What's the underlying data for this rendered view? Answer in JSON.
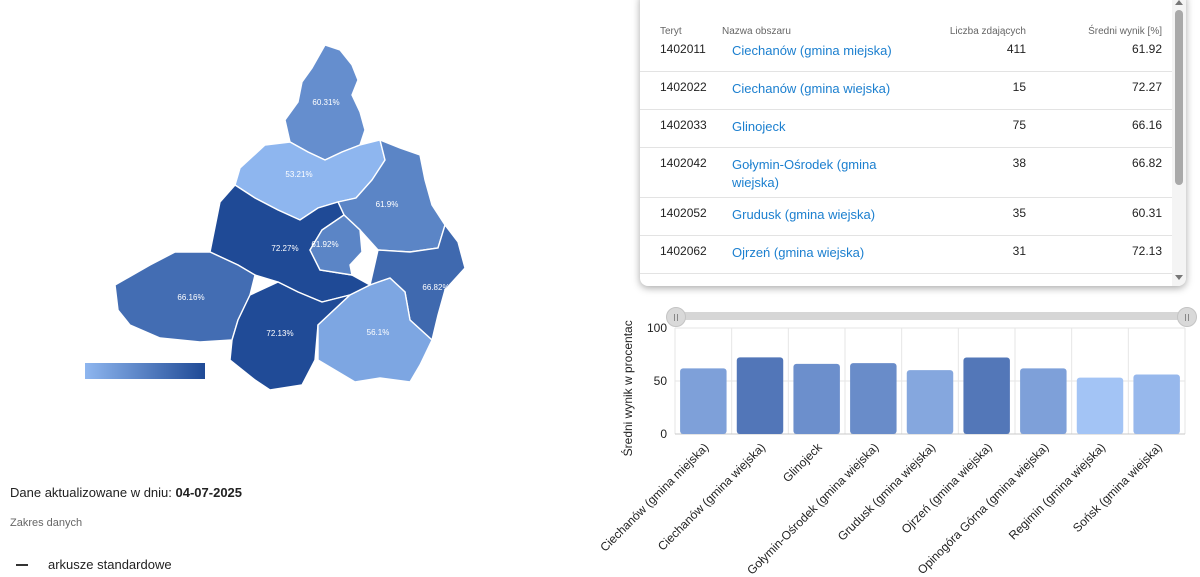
{
  "map": {
    "regions": [
      {
        "id": "north",
        "label": "60.31%",
        "value": 60.31
      },
      {
        "id": "northwest",
        "label": "53.21%",
        "value": 53.21
      },
      {
        "id": "east",
        "label": "61.9%",
        "value": 61.9
      },
      {
        "id": "center-west",
        "label": "72.27%",
        "value": 72.27
      },
      {
        "id": "city",
        "label": "61.92%",
        "value": 61.92
      },
      {
        "id": "west",
        "label": "66.16%",
        "value": 66.16
      },
      {
        "id": "southeast",
        "label": "66.82%",
        "value": 66.82
      },
      {
        "id": "south",
        "label": "72.13%",
        "value": 72.13
      },
      {
        "id": "south-east-2",
        "label": "56.1%",
        "value": 56.1
      }
    ],
    "legend": {
      "color_low": "#8eb6ef",
      "color_high": "#1f4a96"
    }
  },
  "info": {
    "update_prefix": "Dane aktualizowane w dniu:",
    "update_date": "04-07-2025",
    "scope_label": "Zakres danych",
    "scope_item": "arkusze standardowe"
  },
  "table": {
    "headers": {
      "teryt": "Teryt",
      "name": "Nazwa obszaru",
      "count": "Liczba zdających",
      "avg": "Średni wynik [%]"
    },
    "rows": [
      {
        "teryt": "1402011",
        "name": "Ciechanów (gmina miejska)",
        "count": "411",
        "avg": "61.92"
      },
      {
        "teryt": "1402022",
        "name": "Ciechanów (gmina wiejska)",
        "count": "15",
        "avg": "72.27"
      },
      {
        "teryt": "1402033",
        "name": "Glinojeck",
        "count": "75",
        "avg": "66.16"
      },
      {
        "teryt": "1402042",
        "name": "Gołymin-Ośrodek (gmina wiejska)",
        "count": "38",
        "avg": "66.82"
      },
      {
        "teryt": "1402052",
        "name": "Grudusk (gmina wiejska)",
        "count": "35",
        "avg": "60.31"
      },
      {
        "teryt": "1402062",
        "name": "Ojrzeń (gmina wiejska)",
        "count": "31",
        "avg": "72.13"
      }
    ]
  },
  "chart_data": {
    "type": "bar",
    "categories": [
      "Ciechanów (gmina miejska)",
      "Ciechanów (gmina wiejska)",
      "Glinojeck",
      "Gołymin-Ośrodek (gmina wiejska)",
      "Grudusk (gmina wiejska)",
      "Ojrzeń (gmina wiejska)",
      "Opinogóra Górna (gmina wiejska)",
      "Regimin (gmina wiejska)",
      "Sońsk (gmina wiejska)"
    ],
    "values": [
      61.92,
      72.27,
      66.16,
      66.82,
      60.31,
      72.13,
      61.9,
      53.21,
      56.1
    ],
    "ylabel": "Średni wynik w procentach",
    "ylim": [
      0,
      100
    ],
    "yticks": [
      "0",
      "50",
      "100"
    ],
    "grid": true,
    "color_low": "#a3c4f5",
    "color_high": "#5276b8"
  }
}
